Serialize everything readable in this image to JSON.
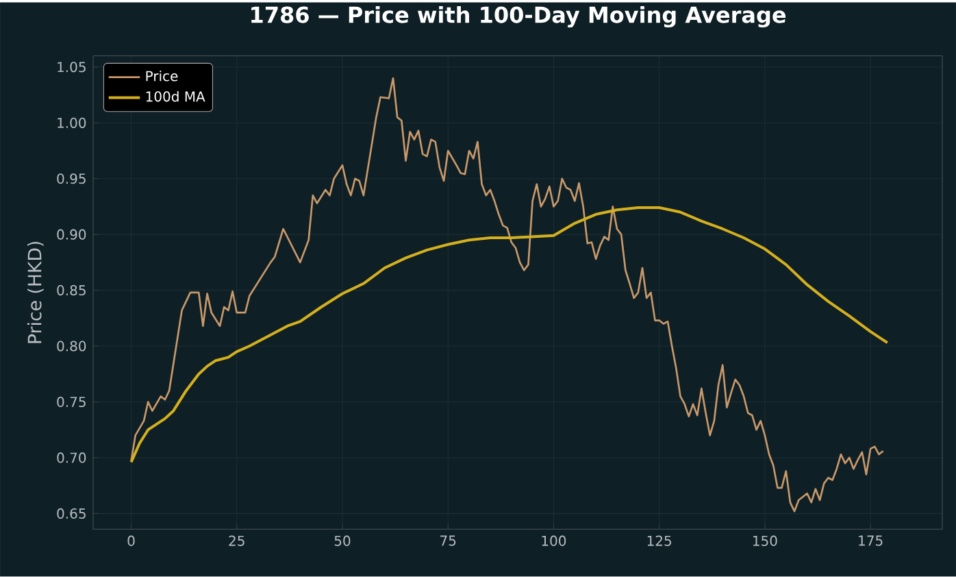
{
  "chart_data": {
    "type": "line",
    "title": "1786 — Price with 100-Day Moving Average",
    "ylabel": "Price (HKD)",
    "xlim": [
      -9,
      192
    ],
    "ylim": [
      0.636,
      1.06
    ],
    "xticks": [
      0,
      25,
      50,
      75,
      100,
      125,
      150,
      175
    ],
    "yticks": [
      {
        "value": 0.65,
        "label": "0.65"
      },
      {
        "value": 0.7,
        "label": "0.70"
      },
      {
        "value": 0.75,
        "label": "0.75"
      },
      {
        "value": 0.8,
        "label": "0.80"
      },
      {
        "value": 0.85,
        "label": "0.85"
      },
      {
        "value": 0.9,
        "label": "0.90"
      },
      {
        "value": 0.95,
        "label": "0.95"
      },
      {
        "value": 1.0,
        "label": "1.00"
      },
      {
        "value": 1.05,
        "label": "1.05"
      }
    ],
    "grid": true,
    "legend": "top left",
    "marker": "none",
    "line_style": "solid",
    "series": [
      {
        "name": "Price",
        "color": "#c8996a",
        "x": [
          0,
          1,
          3,
          4,
          5,
          7,
          8,
          9,
          12,
          14,
          16,
          17,
          18,
          19,
          21,
          22,
          23,
          24,
          25,
          27,
          28,
          33,
          34,
          36,
          38,
          40,
          42,
          43,
          44,
          46,
          47,
          48,
          50,
          51,
          52,
          53,
          54,
          55,
          58,
          59,
          61,
          62,
          63,
          64,
          65,
          66,
          67,
          68,
          69,
          70,
          71,
          72,
          73,
          74,
          75,
          77,
          78,
          79,
          80,
          81,
          82,
          83,
          84,
          85,
          86,
          87,
          88,
          89,
          90,
          91,
          92,
          93,
          94,
          95,
          96,
          97,
          98,
          99,
          100,
          101,
          102,
          103,
          104,
          105,
          106,
          107,
          108,
          109,
          110,
          111,
          112,
          113,
          114,
          115,
          116,
          117,
          118,
          119,
          120,
          121,
          122,
          123,
          124,
          125,
          126,
          127,
          128,
          129,
          130,
          131,
          132,
          133,
          134,
          135,
          136,
          137,
          138,
          139,
          140,
          141,
          142,
          143,
          144,
          145,
          146,
          147,
          148,
          149,
          150,
          151,
          152,
          153,
          154,
          155,
          156,
          157,
          158,
          159,
          160,
          161,
          162,
          163,
          164,
          165,
          166,
          167,
          168,
          169,
          170,
          171,
          172,
          173,
          174,
          175,
          176,
          177,
          178
        ],
        "values": [
          0.697,
          0.72,
          0.733,
          0.75,
          0.742,
          0.755,
          0.752,
          0.76,
          0.832,
          0.848,
          0.848,
          0.818,
          0.847,
          0.83,
          0.818,
          0.835,
          0.832,
          0.849,
          0.83,
          0.83,
          0.845,
          0.875,
          0.88,
          0.905,
          0.89,
          0.875,
          0.895,
          0.935,
          0.928,
          0.94,
          0.935,
          0.95,
          0.962,
          0.945,
          0.935,
          0.95,
          0.948,
          0.935,
          1.005,
          1.023,
          1.022,
          1.04,
          1.005,
          1.002,
          0.966,
          0.992,
          0.985,
          0.993,
          0.972,
          0.97,
          0.985,
          0.983,
          0.96,
          0.948,
          0.975,
          0.962,
          0.955,
          0.954,
          0.975,
          0.968,
          0.983,
          0.945,
          0.935,
          0.94,
          0.93,
          0.918,
          0.908,
          0.906,
          0.893,
          0.888,
          0.875,
          0.868,
          0.873,
          0.93,
          0.945,
          0.925,
          0.932,
          0.943,
          0.925,
          0.93,
          0.95,
          0.942,
          0.94,
          0.93,
          0.946,
          0.925,
          0.892,
          0.893,
          0.878,
          0.89,
          0.898,
          0.895,
          0.925,
          0.905,
          0.9,
          0.868,
          0.856,
          0.843,
          0.848,
          0.87,
          0.843,
          0.848,
          0.823,
          0.823,
          0.82,
          0.822,
          0.8,
          0.78,
          0.755,
          0.748,
          0.737,
          0.748,
          0.738,
          0.762,
          0.74,
          0.72,
          0.733,
          0.765,
          0.783,
          0.745,
          0.758,
          0.77,
          0.765,
          0.755,
          0.74,
          0.738,
          0.725,
          0.733,
          0.72,
          0.703,
          0.693,
          0.673,
          0.673,
          0.688,
          0.66,
          0.652,
          0.662,
          0.665,
          0.668,
          0.66,
          0.672,
          0.662,
          0.677,
          0.682,
          0.68,
          0.69,
          0.703,
          0.695,
          0.7,
          0.69,
          0.698,
          0.705,
          0.685,
          0.708,
          0.71,
          0.703,
          0.706
        ]
      },
      {
        "name": "100d MA",
        "color": "#d4b01e",
        "x": [
          0,
          2,
          4,
          8,
          10,
          13,
          16,
          18,
          20,
          23,
          25,
          28,
          33,
          37,
          40,
          45,
          50,
          55,
          60,
          65,
          70,
          75,
          80,
          85,
          90,
          95,
          100,
          105,
          110,
          115,
          120,
          125,
          130,
          135,
          140,
          145,
          150,
          155,
          160,
          165,
          170,
          175,
          179
        ],
        "values": [
          0.696,
          0.713,
          0.725,
          0.735,
          0.742,
          0.76,
          0.775,
          0.782,
          0.787,
          0.79,
          0.795,
          0.8,
          0.81,
          0.818,
          0.822,
          0.835,
          0.847,
          0.856,
          0.87,
          0.879,
          0.886,
          0.891,
          0.895,
          0.897,
          0.897,
          0.898,
          0.899,
          0.91,
          0.918,
          0.922,
          0.924,
          0.924,
          0.92,
          0.912,
          0.905,
          0.897,
          0.887,
          0.873,
          0.855,
          0.84,
          0.827,
          0.813,
          0.803
        ]
      }
    ]
  }
}
